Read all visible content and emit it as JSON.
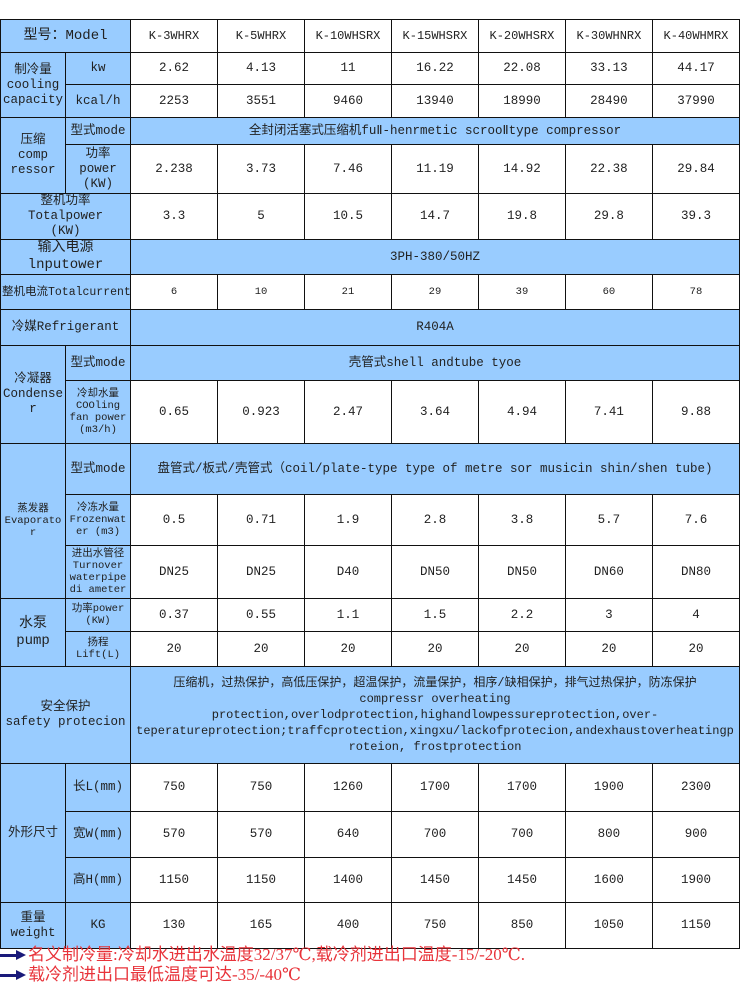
{
  "models_label": "型号：Model",
  "models": [
    "K-3WHRX",
    "K-5WHRX",
    "K-10WHSRX",
    "K-15WHSRX",
    "K-20WHSRX",
    "K-30WHNRX",
    "K-40WHMRX"
  ],
  "cooling": {
    "label": "制冷量\ncooling\ncapacity",
    "kw_label": "kw",
    "kw": [
      "2.62",
      "4.13",
      "11",
      "16.22",
      "22.08",
      "33.13",
      "44.17"
    ],
    "kcal_label": "kcal/h",
    "kcal": [
      "2253",
      "3551",
      "9460",
      "13940",
      "18990",
      "28490",
      "37990"
    ]
  },
  "compressor": {
    "label": "压缩\ncomp\nressor",
    "mode_label": "型式mode",
    "mode": "全封闭活塞式压缩机fuⅡ-henrmetic scrooⅡtype compressor",
    "power_label": "功率\npower\n(KW)",
    "power": [
      "2.238",
      "3.73",
      "7.46",
      "11.19",
      "14.92",
      "22.38",
      "29.84"
    ]
  },
  "total_power": {
    "label": "整机功率\nTotalpower\n(KW)",
    "values": [
      "3.3",
      "5",
      "10.5",
      "14.7",
      "19.8",
      "29.8",
      "39.3"
    ]
  },
  "input_power": {
    "label": "输入电源lnputower",
    "value": "3PH-380/50HZ"
  },
  "total_current": {
    "label": "整机电流Totalcurrent(A)",
    "values": [
      "6",
      "10",
      "21",
      "29",
      "39",
      "60",
      "78"
    ]
  },
  "refrigerant": {
    "label": "冷媒Refrigerant",
    "value": "R404A"
  },
  "condenser": {
    "label": "冷凝器\nCondense\nr",
    "mode_label": "型式mode",
    "mode": "壳管式shell andtube tyoe",
    "water_label": "冷却水量\nCOOling\nfan power\n(m3/h)",
    "water": [
      "0.65",
      "0.923",
      "2.47",
      "3.64",
      "4.94",
      "7.41",
      "9.88"
    ]
  },
  "evaporator": {
    "label": "蒸发器\nEvaporato\nr",
    "mode_label": "型式mode",
    "mode": "盘管式/板式/壳管式（coil/plate-type type of metre sor musicin shin/shen tube)",
    "water_label": "冷冻水量\nFrozenwat\ner (m3)",
    "water": [
      "0.5",
      "0.71",
      "1.9",
      "2.8",
      "3.8",
      "5.7",
      "7.6"
    ],
    "pipe_label": "进出水管径\nTurnover\nwaterpipe\ndi ameter",
    "pipe": [
      "DN25",
      "DN25",
      "D40",
      "DN50",
      "DN50",
      "DN60",
      "DN80"
    ]
  },
  "pump": {
    "label": "水泵\npump",
    "power_label": "功率power\n(KW)",
    "power": [
      "0.37",
      "0.55",
      "1.1",
      "1.5",
      "2.2",
      "3",
      "4"
    ],
    "lift_label": "扬程\nLift(L)",
    "lift": [
      "20",
      "20",
      "20",
      "20",
      "20",
      "20",
      "20"
    ]
  },
  "safety": {
    "label": "安全保护\nsafety protecion",
    "value": "压缩机，过热保护，高低压保护，超温保护，流量保护，相序/缺相保护，排气过热保护，防冻保护\ncompressr overheating\nprotection,overlodprotection,highandlowpessureprotection,over-\nteperatureprotection;traffcprotection,xingxu/lackofprotecion,andexhaustoverheatingp\nroteion,     frostprotection"
  },
  "dimensions": {
    "label": "外形尺寸",
    "length_label": "长L(mm)",
    "length": [
      "750",
      "750",
      "1260",
      "1700",
      "1700",
      "1900",
      "2300"
    ],
    "width_label": "宽W(mm)",
    "width": [
      "570",
      "570",
      "640",
      "700",
      "700",
      "800",
      "900"
    ],
    "height_label": "高H(mm)",
    "height": [
      "1150",
      "1150",
      "1400",
      "1450",
      "1450",
      "1600",
      "1900"
    ]
  },
  "weight": {
    "label": "重量\nweight",
    "unit": "KG",
    "values": [
      "130",
      "165",
      "400",
      "750",
      "850",
      "1050",
      "1150"
    ]
  },
  "notes": [
    "名义制冷量:冷却水进出水温度32/37℃,载冷剂进出口温度-15/-20℃.",
    "载冷剂进出口最低温度可达-35/-40℃"
  ],
  "colors": {
    "header_bg": "#99ccff",
    "note_text": "#e8333a",
    "arrow": "#1a1a7a"
  }
}
